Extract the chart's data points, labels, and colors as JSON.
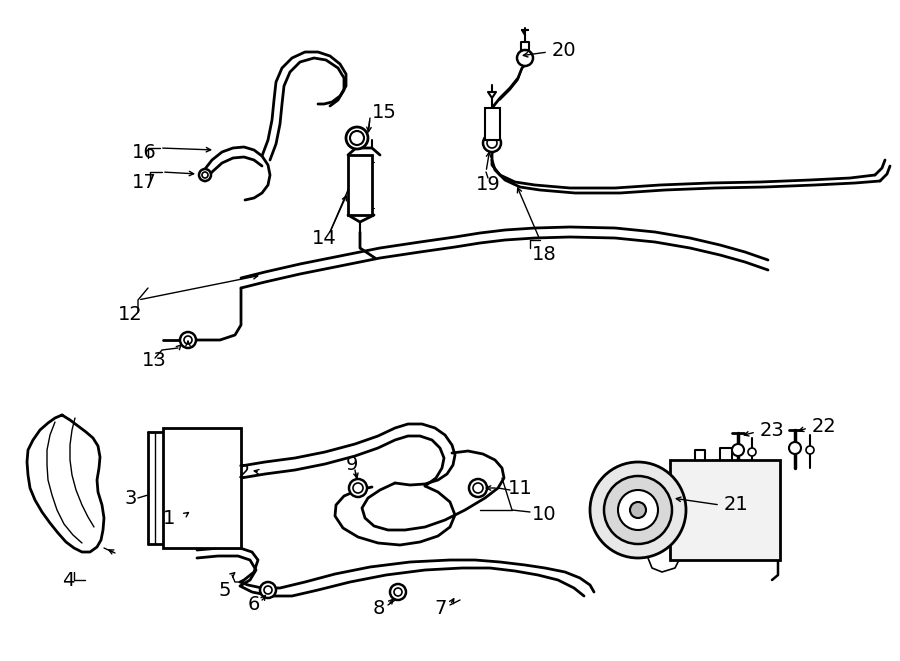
{
  "bg_color": "#ffffff",
  "line_color": "#000000",
  "lw": 1.5,
  "lw_thick": 2.0,
  "label_fontsize": 14
}
